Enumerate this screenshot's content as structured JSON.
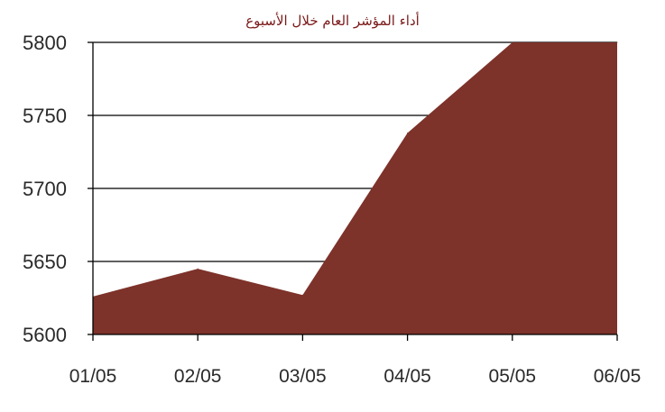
{
  "chart_data": {
    "type": "area",
    "title": "أداء المؤشر العام خلال الأسبوع",
    "categories": [
      "01/05",
      "02/05",
      "03/05",
      "04/05",
      "05/05",
      "06/05"
    ],
    "values": [
      5626,
      5645,
      5627,
      5738,
      5800,
      5800
    ],
    "ylim": [
      5600,
      5800
    ],
    "yticks": [
      5600,
      5650,
      5700,
      5750,
      5800
    ],
    "ytick_labels": [
      "5600",
      "5650",
      "5700",
      "5750",
      "5800"
    ],
    "grid": true,
    "legend": "none",
    "colors": {
      "area": "#7d322a",
      "grid": "#000000",
      "title": "#7b1a1a"
    }
  }
}
